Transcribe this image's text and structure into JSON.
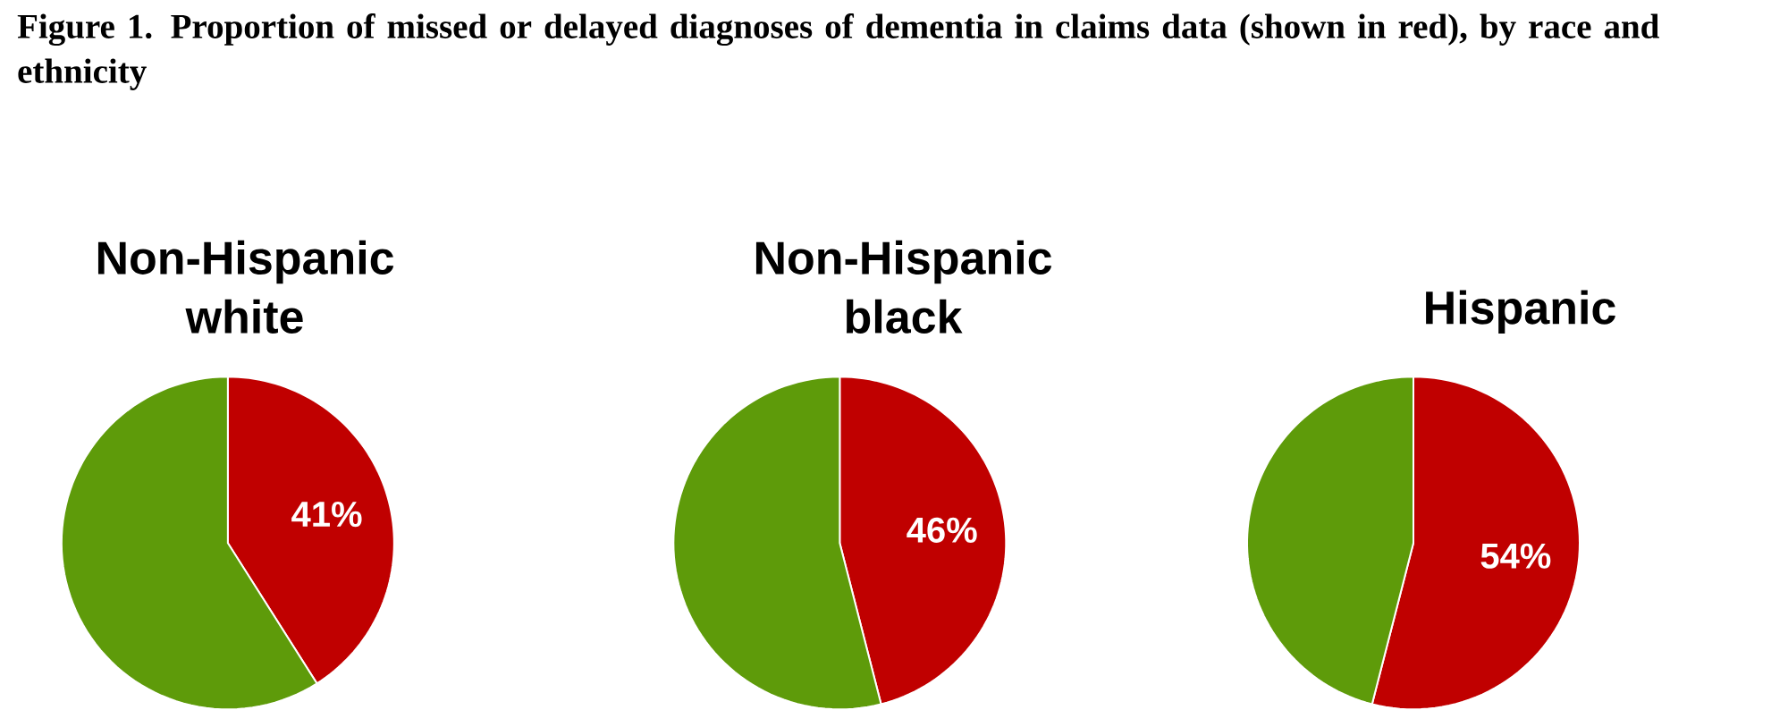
{
  "chart_data": [
    {
      "type": "pie",
      "title": "Non-Hispanic white",
      "categories": [
        null,
        null
      ],
      "values": [
        41,
        59
      ],
      "colors": [
        "#c00000",
        "#5e9b0a"
      ],
      "value_labels": [
        "41%",
        null
      ],
      "annotations": [
        "Figure 1.  Proportion of missed or delayed diagnoses of dementia in claims data (shown in red), by race and ethnicity"
      ]
    },
    {
      "type": "pie",
      "title": "Non-Hispanic black",
      "categories": [
        null,
        null
      ],
      "values": [
        46,
        54
      ],
      "colors": [
        "#c00000",
        "#5e9b0a"
      ],
      "value_labels": [
        "46%",
        null
      ]
    },
    {
      "type": "pie",
      "title": "Hispanic",
      "categories": [
        null,
        null
      ],
      "values": [
        54,
        46
      ],
      "colors": [
        "#c00000",
        "#5e9b0a"
      ],
      "value_labels": [
        "54%",
        null
      ]
    }
  ]
}
